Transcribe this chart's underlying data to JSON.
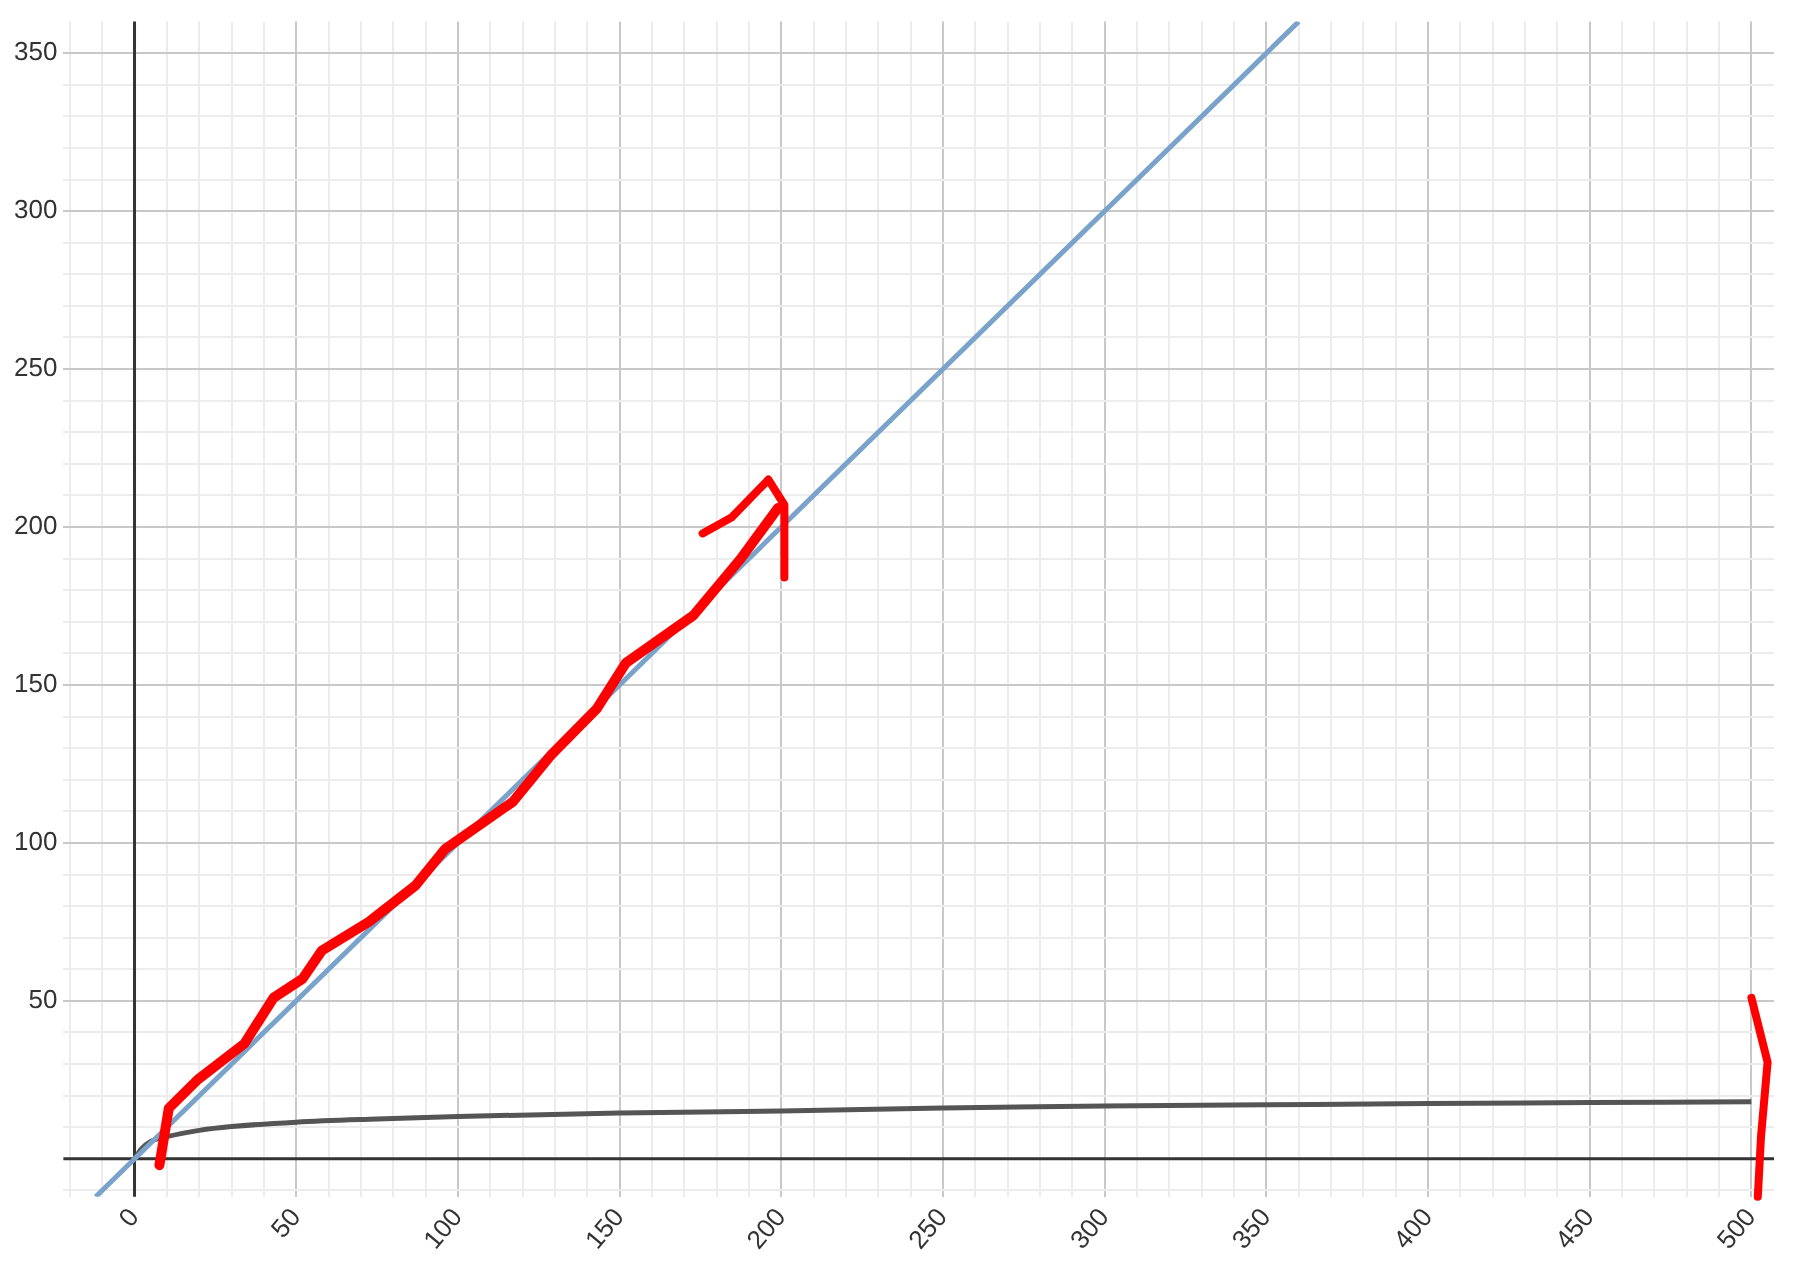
{
  "chart_data": {
    "type": "line",
    "xlim": [
      -22,
      507
    ],
    "ylim": [
      -12,
      360
    ],
    "xticks": [
      {
        "value": -20,
        "label": null
      },
      {
        "value": -10,
        "label": null
      },
      0,
      {
        "value": 10,
        "label": null
      },
      {
        "value": 20,
        "label": null
      },
      {
        "value": 30,
        "label": null
      },
      {
        "value": 40,
        "label": null
      },
      50,
      {
        "value": 60,
        "label": null
      },
      {
        "value": 70,
        "label": null
      },
      {
        "value": 80,
        "label": null
      },
      {
        "value": 90,
        "label": null
      },
      100,
      {
        "value": 110,
        "label": null
      },
      {
        "value": 120,
        "label": null
      },
      {
        "value": 130,
        "label": null
      },
      {
        "value": 140,
        "label": null
      },
      150,
      {
        "value": 160,
        "label": null
      },
      {
        "value": 170,
        "label": null
      },
      {
        "value": 180,
        "label": null
      },
      {
        "value": 190,
        "label": null
      },
      200,
      {
        "value": 210,
        "label": null
      },
      {
        "value": 220,
        "label": null
      },
      {
        "value": 230,
        "label": null
      },
      {
        "value": 240,
        "label": null
      },
      250,
      {
        "value": 260,
        "label": null
      },
      {
        "value": 270,
        "label": null
      },
      {
        "value": 280,
        "label": null
      },
      {
        "value": 290,
        "label": null
      },
      300,
      {
        "value": 310,
        "label": null
      },
      {
        "value": 320,
        "label": null
      },
      {
        "value": 330,
        "label": null
      },
      {
        "value": 340,
        "label": null
      },
      350,
      {
        "value": 360,
        "label": null
      },
      {
        "value": 370,
        "label": null
      },
      {
        "value": 380,
        "label": null
      },
      {
        "value": 390,
        "label": null
      },
      400,
      {
        "value": 410,
        "label": null
      },
      {
        "value": 420,
        "label": null
      },
      {
        "value": 430,
        "label": null
      },
      {
        "value": 440,
        "label": null
      },
      450,
      {
        "value": 460,
        "label": null
      },
      {
        "value": 470,
        "label": null
      },
      {
        "value": 480,
        "label": null
      },
      {
        "value": 490,
        "label": null
      },
      500
    ],
    "yticks": [
      {
        "value": -10,
        "label": null
      },
      {
        "value": 0,
        "label": null
      },
      {
        "value": 10,
        "label": null
      },
      {
        "value": 20,
        "label": null
      },
      {
        "value": 30,
        "label": null
      },
      {
        "value": 40,
        "label": null
      },
      50,
      {
        "value": 60,
        "label": null
      },
      {
        "value": 70,
        "label": null
      },
      {
        "value": 80,
        "label": null
      },
      {
        "value": 90,
        "label": null
      },
      100,
      {
        "value": 110,
        "label": null
      },
      {
        "value": 120,
        "label": null
      },
      {
        "value": 130,
        "label": null
      },
      {
        "value": 140,
        "label": null
      },
      150,
      {
        "value": 160,
        "label": null
      },
      {
        "value": 170,
        "label": null
      },
      {
        "value": 180,
        "label": null
      },
      {
        "value": 190,
        "label": null
      },
      200,
      {
        "value": 210,
        "label": null
      },
      {
        "value": 220,
        "label": null
      },
      {
        "value": 230,
        "label": null
      },
      {
        "value": 240,
        "label": null
      },
      250,
      {
        "value": 260,
        "label": null
      },
      {
        "value": 270,
        "label": null
      },
      {
        "value": 280,
        "label": null
      },
      {
        "value": 290,
        "label": null
      },
      300,
      {
        "value": 310,
        "label": null
      },
      {
        "value": 320,
        "label": null
      },
      {
        "value": 330,
        "label": null
      },
      {
        "value": 340,
        "label": null
      },
      350
    ],
    "grid": true,
    "marker": "none",
    "line_style": "solid",
    "legend": false,
    "series": [
      {
        "color": "#7aa3cc",
        "x": [
          -12,
          360
        ],
        "values": [
          -12,
          360
        ]
      },
      {
        "color": "#555555",
        "x": [
          0,
          1,
          2,
          5,
          10,
          20,
          30,
          50,
          75,
          100,
          150,
          200,
          250,
          300,
          350,
          400,
          450,
          500
        ],
        "values": [
          0,
          1.5,
          3,
          5.5,
          7,
          9,
          10.2,
          11.6,
          12.6,
          13.4,
          14.5,
          15.1,
          16.1,
          16.7,
          17.1,
          17.5,
          17.8,
          18.1
        ]
      }
    ]
  }
}
